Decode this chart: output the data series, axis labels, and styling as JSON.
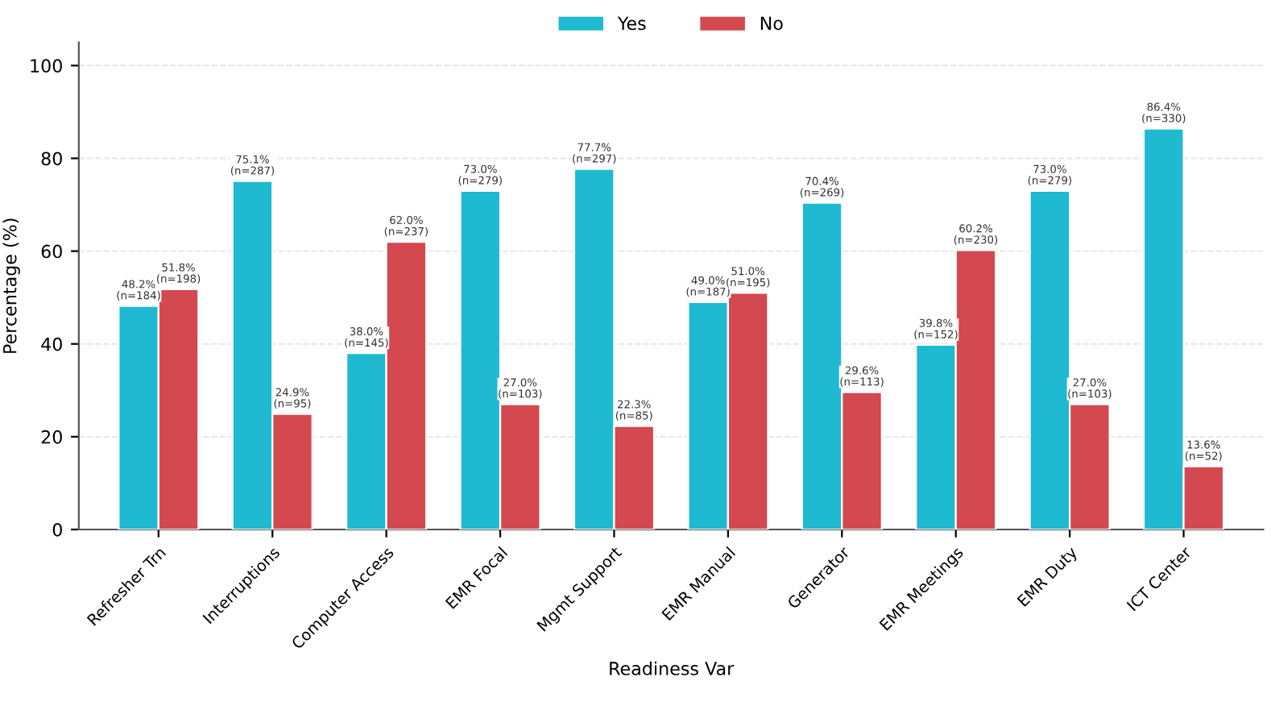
{
  "chart_data": {
    "type": "bar",
    "xlabel": "Readiness Var",
    "ylabel": "Percentage (%)",
    "categories": [
      "Refresher Trn",
      "Interruptions",
      "Computer Access",
      "EMR Focal",
      "Mgmt Support",
      "EMR Manual",
      "Generator",
      "EMR Meetings",
      "EMR Duty",
      "ICT Center"
    ],
    "series": [
      {
        "name": "Yes",
        "color": "#1fbad1",
        "values": [
          48.2,
          75.1,
          38.0,
          73.0,
          77.7,
          49.0,
          70.4,
          39.8,
          73.0,
          86.4
        ],
        "value_labels": [
          "48.2%\n(n=184)",
          "75.1%\n(n=287)",
          "38.0%\n(n=145)",
          "73.0%\n(n=279)",
          "77.7%\n(n=297)",
          "49.0%\n(n=187)",
          "70.4%\n(n=269)",
          "39.8%\n(n=152)",
          "73.0%\n(n=279)",
          "86.4%\n(n=330)"
        ]
      },
      {
        "name": "No",
        "color": "#d4484f",
        "values": [
          51.8,
          24.9,
          62.0,
          27.0,
          22.3,
          51.0,
          29.6,
          60.2,
          27.0,
          13.6
        ],
        "value_labels": [
          "51.8%\n(n=198)",
          "24.9%\n(n=95)",
          "62.0%\n(n=237)",
          "27.0%\n(n=103)",
          "22.3%\n(n=85)",
          "51.0%\n(n=195)",
          "29.6%\n(n=113)",
          "60.2%\n(n=230)",
          "27.0%\n(n=103)",
          "13.6%\n(n=52)"
        ]
      }
    ],
    "ylim": [
      0,
      105
    ],
    "yticks": [
      0,
      20,
      40,
      60,
      80,
      100
    ],
    "grid": "y",
    "legend": "top"
  }
}
